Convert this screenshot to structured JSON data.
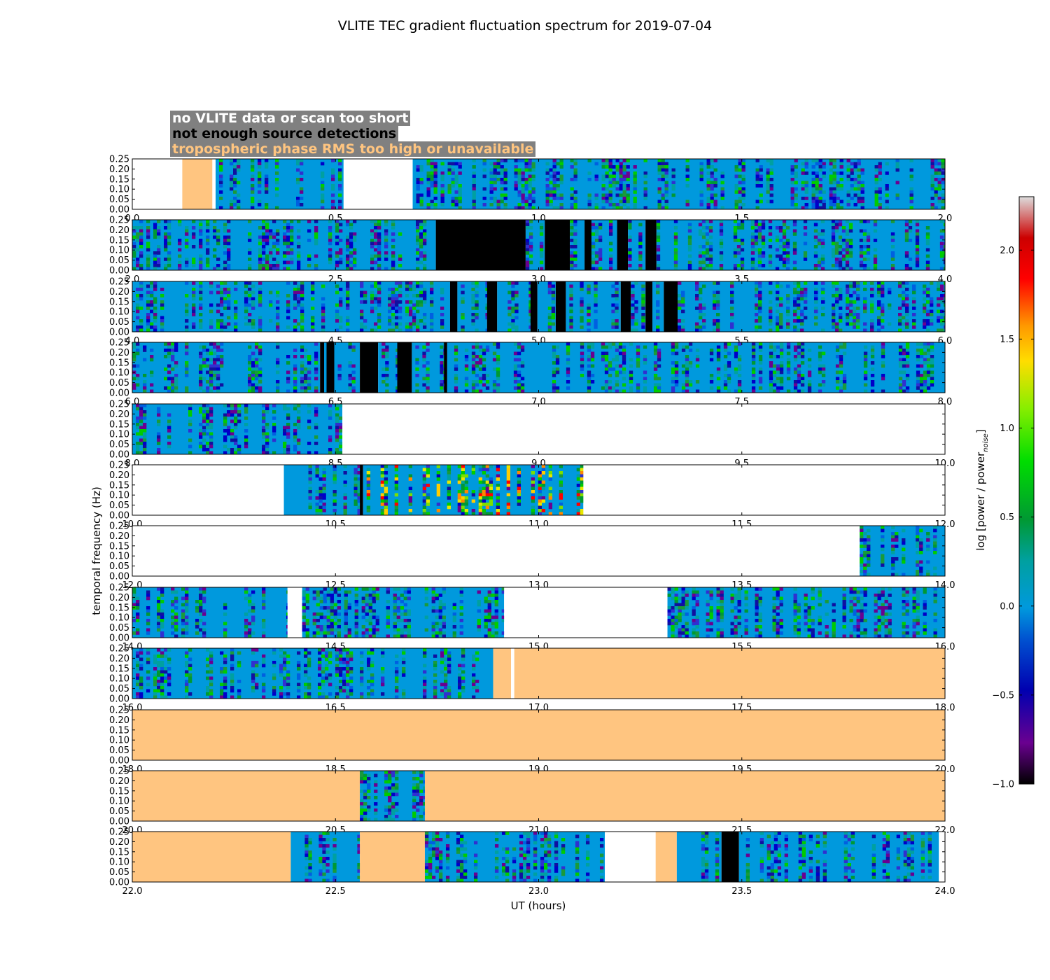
{
  "chart_data": {
    "type": "heatmap",
    "title": "VLITE TEC gradient fluctuation spectrum for 2019-07-04",
    "xlabel": "UT (hours)",
    "ylabel": "temporal frequency (Hz)",
    "ylim": [
      0,
      0.25
    ],
    "y_ticks": [
      0.0,
      0.05,
      0.1,
      0.15,
      0.2,
      0.25
    ],
    "y_tick_labels": [
      "0.00",
      "0.05",
      "0.10",
      "0.15",
      "0.20",
      "0.25"
    ],
    "colorbar": {
      "label": "log [power / power",
      "label_sub": "noise",
      "label_end": "]",
      "range": [
        -1.0,
        2.3
      ],
      "ticks": [
        -1.0,
        -0.5,
        0.0,
        0.5,
        1.0,
        1.5,
        2.0
      ],
      "tick_labels": [
        "−1.0",
        "−0.5",
        "0.0",
        "0.5",
        "1.0",
        "1.5",
        "2.0"
      ]
    },
    "legend": [
      {
        "label": "no VLITE data or scan too short",
        "color": "#ffffff"
      },
      {
        "label": "not enough source detections",
        "color": "#000000"
      },
      {
        "label": "tropospheric phase RMS too high or unavailable",
        "color": "#ffc580"
      }
    ],
    "rows": [
      {
        "xlim": [
          0,
          2
        ],
        "tick_labels": [
          "0.0",
          "0.5",
          "1.0",
          "1.5",
          "2.0"
        ],
        "segments": [
          {
            "kind": "nodata",
            "start": 0.0,
            "end": 0.123
          },
          {
            "kind": "trop",
            "start": 0.123,
            "end": 0.197
          },
          {
            "kind": "nodata",
            "start": 0.197,
            "end": 0.205
          },
          {
            "kind": "data",
            "start": 0.205,
            "end": 0.52
          },
          {
            "kind": "nodata",
            "start": 0.52,
            "end": 0.69
          },
          {
            "kind": "data",
            "start": 0.69,
            "end": 2.0
          }
        ]
      },
      {
        "xlim": [
          2,
          4
        ],
        "tick_labels": [
          "2.0",
          "2.5",
          "3.0",
          "3.5",
          "4.0"
        ],
        "segments": [
          {
            "kind": "data",
            "start": 2.0,
            "end": 2.747
          },
          {
            "kind": "nodet",
            "start": 2.747,
            "end": 2.968
          },
          {
            "kind": "data",
            "start": 2.968,
            "end": 3.015
          },
          {
            "kind": "nodet",
            "start": 3.015,
            "end": 3.077
          },
          {
            "kind": "data",
            "start": 3.077,
            "end": 3.113
          },
          {
            "kind": "nodet",
            "start": 3.113,
            "end": 3.13
          },
          {
            "kind": "data",
            "start": 3.13,
            "end": 3.193
          },
          {
            "kind": "nodet",
            "start": 3.193,
            "end": 3.22
          },
          {
            "kind": "data",
            "start": 3.22,
            "end": 3.263
          },
          {
            "kind": "nodet",
            "start": 3.263,
            "end": 3.29
          },
          {
            "kind": "data",
            "start": 3.29,
            "end": 4.0
          }
        ]
      },
      {
        "xlim": [
          4,
          6
        ],
        "tick_labels": [
          "4.0",
          "4.5",
          "5.0",
          "5.5",
          "6.0"
        ],
        "segments": [
          {
            "kind": "data",
            "start": 4.0,
            "end": 4.782
          },
          {
            "kind": "nodet",
            "start": 4.782,
            "end": 4.8
          },
          {
            "kind": "data",
            "start": 4.8,
            "end": 4.873
          },
          {
            "kind": "nodet",
            "start": 4.873,
            "end": 4.898
          },
          {
            "kind": "data",
            "start": 4.898,
            "end": 4.98
          },
          {
            "kind": "nodet",
            "start": 4.98,
            "end": 4.997
          },
          {
            "kind": "data",
            "start": 4.997,
            "end": 5.042
          },
          {
            "kind": "nodet",
            "start": 5.042,
            "end": 5.067
          },
          {
            "kind": "data",
            "start": 5.067,
            "end": 5.202
          },
          {
            "kind": "nodet",
            "start": 5.202,
            "end": 5.227
          },
          {
            "kind": "data",
            "start": 5.227,
            "end": 5.263
          },
          {
            "kind": "nodet",
            "start": 5.263,
            "end": 5.28
          },
          {
            "kind": "data",
            "start": 5.28,
            "end": 5.308
          },
          {
            "kind": "nodet",
            "start": 5.308,
            "end": 5.342
          },
          {
            "kind": "data",
            "start": 5.342,
            "end": 6.0
          }
        ]
      },
      {
        "xlim": [
          6,
          8
        ],
        "tick_labels": [
          "6.0",
          "6.5",
          "7.0",
          "7.5",
          "8.0"
        ],
        "segments": [
          {
            "kind": "data",
            "start": 6.0,
            "end": 6.462
          },
          {
            "kind": "nodet",
            "start": 6.462,
            "end": 6.472
          },
          {
            "kind": "data",
            "start": 6.472,
            "end": 6.478
          },
          {
            "kind": "nodet",
            "start": 6.478,
            "end": 6.497
          },
          {
            "kind": "data",
            "start": 6.497,
            "end": 6.56
          },
          {
            "kind": "nodet",
            "start": 6.56,
            "end": 6.605
          },
          {
            "kind": "data",
            "start": 6.605,
            "end": 6.652
          },
          {
            "kind": "nodet",
            "start": 6.652,
            "end": 6.688
          },
          {
            "kind": "data",
            "start": 6.688,
            "end": 6.767
          },
          {
            "kind": "nodet",
            "start": 6.767,
            "end": 6.775
          },
          {
            "kind": "data",
            "start": 6.775,
            "end": 8.0
          }
        ]
      },
      {
        "xlim": [
          8,
          10
        ],
        "tick_labels": [
          "8.0",
          "8.5",
          "9.0",
          "9.5",
          "10.0"
        ],
        "segments": [
          {
            "kind": "data",
            "start": 8.0,
            "end": 8.517
          },
          {
            "kind": "nodata",
            "start": 8.517,
            "end": 10.0
          }
        ]
      },
      {
        "xlim": [
          10,
          12
        ],
        "tick_labels": [
          "10.0",
          "10.5",
          "11.0",
          "11.5",
          "12.0"
        ],
        "segments": [
          {
            "kind": "nodata",
            "start": 10.0,
            "end": 10.373
          },
          {
            "kind": "data",
            "start": 10.373,
            "end": 10.56
          },
          {
            "kind": "nodet",
            "start": 10.56,
            "end": 10.568
          },
          {
            "kind": "data",
            "start": 10.568,
            "end": 11.11,
            "hot": true
          },
          {
            "kind": "nodata",
            "start": 11.11,
            "end": 12.0
          }
        ]
      },
      {
        "xlim": [
          12,
          14
        ],
        "tick_labels": [
          "12.0",
          "12.5",
          "13.0",
          "13.5",
          "14.0"
        ],
        "segments": [
          {
            "kind": "nodata",
            "start": 12.0,
            "end": 13.79
          },
          {
            "kind": "data",
            "start": 13.79,
            "end": 14.0
          }
        ]
      },
      {
        "xlim": [
          14,
          16
        ],
        "tick_labels": [
          "14.0",
          "14.5",
          "15.0",
          "15.5",
          "16.0"
        ],
        "segments": [
          {
            "kind": "data",
            "start": 14.0,
            "end": 14.382
          },
          {
            "kind": "nodata",
            "start": 14.382,
            "end": 14.418
          },
          {
            "kind": "data",
            "start": 14.418,
            "end": 14.915
          },
          {
            "kind": "nodata",
            "start": 14.915,
            "end": 15.317
          },
          {
            "kind": "data",
            "start": 15.317,
            "end": 16.0
          }
        ]
      },
      {
        "xlim": [
          16,
          18
        ],
        "tick_labels": [
          "16.0",
          "16.5",
          "17.0",
          "17.5",
          "18.0"
        ],
        "segments": [
          {
            "kind": "data",
            "start": 16.0,
            "end": 16.888
          },
          {
            "kind": "trop",
            "start": 16.888,
            "end": 16.932
          },
          {
            "kind": "nodata",
            "start": 16.932,
            "end": 16.94
          },
          {
            "kind": "trop",
            "start": 16.94,
            "end": 18.0
          }
        ]
      },
      {
        "xlim": [
          18,
          20
        ],
        "tick_labels": [
          "18.0",
          "18.5",
          "19.0",
          "19.5",
          "20.0"
        ],
        "segments": [
          {
            "kind": "trop",
            "start": 18.0,
            "end": 20.0
          }
        ]
      },
      {
        "xlim": [
          20,
          22
        ],
        "tick_labels": [
          "20.0",
          "20.5",
          "21.0",
          "21.5",
          "22.0"
        ],
        "segments": [
          {
            "kind": "trop",
            "start": 20.0,
            "end": 20.56
          },
          {
            "kind": "data",
            "start": 20.56,
            "end": 20.72
          },
          {
            "kind": "trop",
            "start": 20.72,
            "end": 22.0
          }
        ]
      },
      {
        "xlim": [
          22,
          24
        ],
        "tick_labels": [
          "22.0",
          "22.5",
          "23.0",
          "23.5",
          "24.0"
        ],
        "segments": [
          {
            "kind": "trop",
            "start": 22.0,
            "end": 22.39
          },
          {
            "kind": "data",
            "start": 22.39,
            "end": 22.56
          },
          {
            "kind": "trop",
            "start": 22.56,
            "end": 22.72
          },
          {
            "kind": "data",
            "start": 22.72,
            "end": 23.163
          },
          {
            "kind": "nodata",
            "start": 23.163,
            "end": 23.288
          },
          {
            "kind": "trop",
            "start": 23.288,
            "end": 23.34
          },
          {
            "kind": "data",
            "start": 23.34,
            "end": 23.45
          },
          {
            "kind": "nodet",
            "start": 23.45,
            "end": 23.493
          },
          {
            "kind": "data",
            "start": 23.493,
            "end": 23.985
          },
          {
            "kind": "nodata",
            "start": 23.985,
            "end": 24.0
          }
        ]
      }
    ]
  }
}
